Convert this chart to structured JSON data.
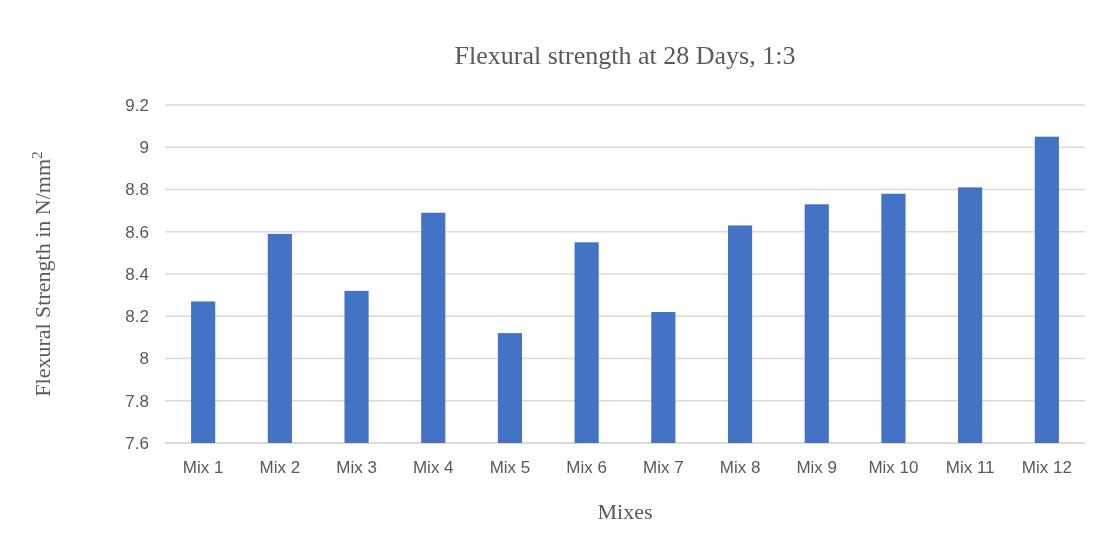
{
  "chart_data": {
    "type": "bar",
    "title": "Flexural strength at 28 Days, 1:3",
    "xlabel": "Mixes",
    "ylabel": "Flexural Strength in N/mm$^{2}$",
    "categories": [
      "Mix 1",
      "Mix 2",
      "Mix 3",
      "Mix 4",
      "Mix 5",
      "Mix 6",
      "Mix 7",
      "Mix 8",
      "Mix 9",
      "Mix 10",
      "Mix 11",
      "Mix 12"
    ],
    "values": [
      8.27,
      8.59,
      8.32,
      8.69,
      8.12,
      8.55,
      8.22,
      8.63,
      8.73,
      8.78,
      8.81,
      9.05
    ],
    "color": "#4472c4",
    "ylim": [
      7.6,
      9.2
    ],
    "yticks": [
      7.6,
      7.8,
      {
        "value": 8,
        "label": "8"
      },
      8.2,
      8.4,
      8.6,
      8.8,
      {
        "value": 9,
        "label": "9"
      },
      9.2
    ],
    "grid": "y"
  }
}
